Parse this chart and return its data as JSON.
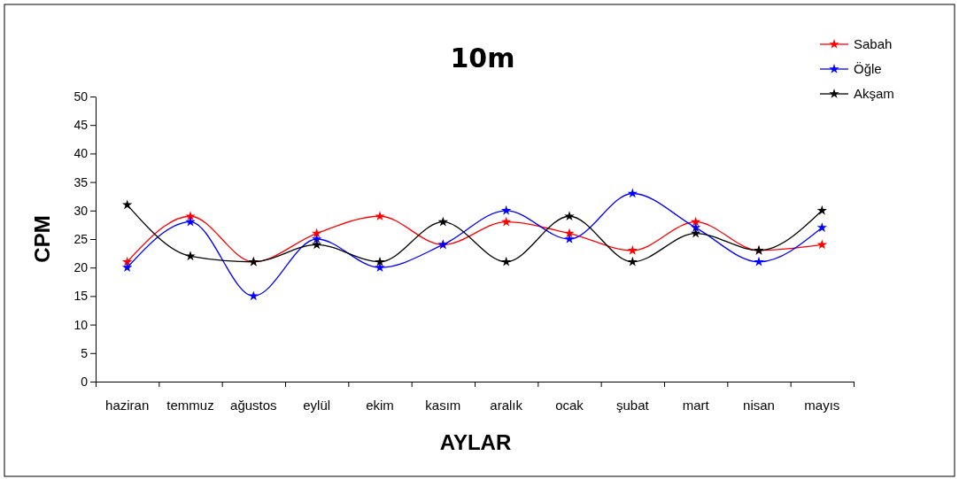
{
  "chart_data": {
    "type": "line",
    "title": "10m",
    "xlabel": "AYLAR",
    "ylabel": "CPM",
    "categories": [
      "haziran",
      "temmuz",
      "ağustos",
      "eylül",
      "ekim",
      "kasım",
      "aralık",
      "ocak",
      "şubat",
      "mart",
      "nisan",
      "mayıs"
    ],
    "series": [
      {
        "name": "Sabah",
        "color": "#ff0000",
        "values": [
          21,
          29,
          21,
          26,
          29,
          24,
          28,
          26,
          23,
          28,
          23,
          24
        ]
      },
      {
        "name": "Öğle",
        "color": "#0000ff",
        "values": [
          20,
          28,
          15,
          25,
          20,
          24,
          30,
          25,
          33,
          27,
          21,
          27
        ]
      },
      {
        "name": "Akşam",
        "color": "#000000",
        "values": [
          31,
          22,
          21,
          24,
          21,
          28,
          21,
          29,
          21,
          26,
          23,
          30
        ]
      }
    ],
    "ylim": [
      0,
      50
    ],
    "yticks": [
      0,
      5,
      10,
      15,
      20,
      25,
      30,
      35,
      40,
      45,
      50
    ],
    "grid": false,
    "legend": "top right",
    "marker": "star",
    "line_style": "solid"
  }
}
